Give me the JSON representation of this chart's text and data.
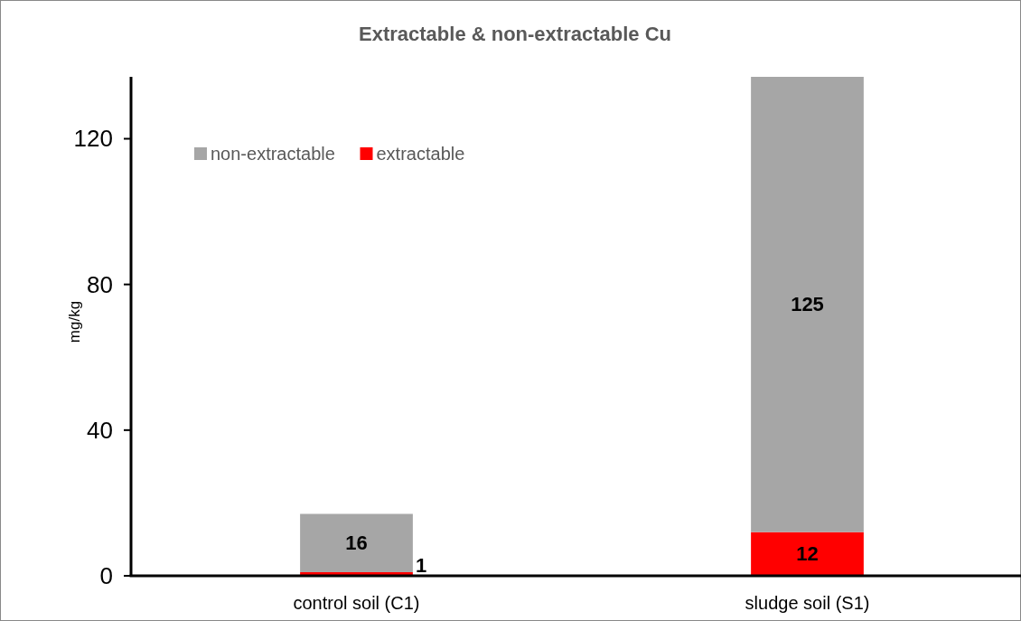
{
  "chart_data": {
    "type": "bar",
    "title": "Extractable & non-extractable Cu",
    "ylabel": "mg/kg",
    "categories": [
      "control soil (C1)",
      "sludge soil (S1)"
    ],
    "stacked": true,
    "series": [
      {
        "name": "extractable",
        "color": "#ff0000",
        "values": [
          1,
          12
        ]
      },
      {
        "name": "non-extractable",
        "color": "#a6a6a6",
        "values": [
          16,
          125
        ]
      }
    ],
    "ylim": [
      0,
      137
    ],
    "yticks": [
      0,
      40,
      80,
      120
    ],
    "grid": false,
    "legend": "top left",
    "data_labels": true
  }
}
